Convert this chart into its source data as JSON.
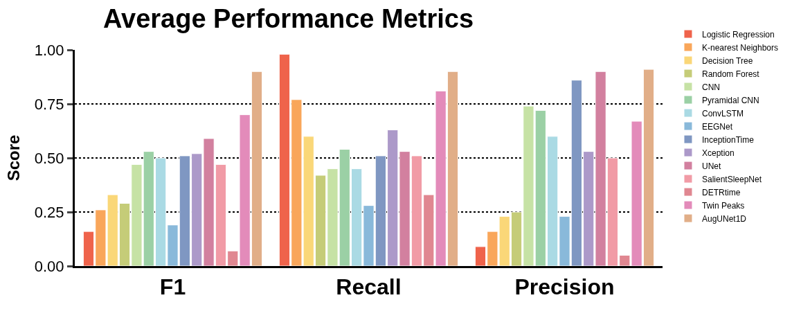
{
  "chart_data": {
    "type": "bar",
    "title": "Average Performance Metrics",
    "ylabel": "Score",
    "categories": [
      "F1",
      "Recall",
      "Precision"
    ],
    "ylim": [
      0,
      1.0
    ],
    "yticks": [
      {
        "value": 0,
        "label": "0.00"
      },
      {
        "value": 0.25,
        "label": "0.25"
      },
      {
        "value": 0.5,
        "label": "0.50"
      },
      {
        "value": 0.75,
        "label": "0.75"
      },
      {
        "value": 1.0,
        "label": "1.00"
      }
    ],
    "grid": "y",
    "legend": "right",
    "series": [
      {
        "name": "Logistic Regression",
        "color": "#ef634b",
        "values": [
          0.16,
          0.98,
          0.09
        ]
      },
      {
        "name": "K-nearest Neighbors",
        "color": "#f9a65a",
        "values": [
          0.26,
          0.77,
          0.16
        ]
      },
      {
        "name": "Decision Tree",
        "color": "#fad778",
        "values": [
          0.33,
          0.6,
          0.23
        ]
      },
      {
        "name": "Random Forest",
        "color": "#c5cc78",
        "values": [
          0.29,
          0.42,
          0.25
        ]
      },
      {
        "name": "CNN",
        "color": "#c6e2a5",
        "values": [
          0.47,
          0.45,
          0.74
        ]
      },
      {
        "name": "Pyramidal CNN",
        "color": "#9bd0a5",
        "values": [
          0.53,
          0.54,
          0.72
        ]
      },
      {
        "name": "ConvLSTM",
        "color": "#aadae4",
        "values": [
          0.5,
          0.45,
          0.6
        ]
      },
      {
        "name": "EEGNet",
        "color": "#89b9da",
        "values": [
          0.19,
          0.28,
          0.23
        ]
      },
      {
        "name": "InceptionTime",
        "color": "#7f97c2",
        "values": [
          0.51,
          0.51,
          0.86
        ]
      },
      {
        "name": "Xception",
        "color": "#ac99c9",
        "values": [
          0.52,
          0.63,
          0.53
        ]
      },
      {
        "name": "UNet",
        "color": "#d2809f",
        "values": [
          0.59,
          0.53,
          0.9
        ]
      },
      {
        "name": "SalientSleepNet",
        "color": "#f19ba6",
        "values": [
          0.47,
          0.51,
          0.5
        ]
      },
      {
        "name": "DETRtime",
        "color": "#e08791",
        "values": [
          0.07,
          0.33,
          0.05
        ]
      },
      {
        "name": "Twin Peaks",
        "color": "#e38bba",
        "values": [
          0.7,
          0.81,
          0.67
        ]
      },
      {
        "name": "AugUNet1D",
        "color": "#e1ae88",
        "values": [
          0.9,
          0.9,
          0.91
        ]
      }
    ]
  }
}
